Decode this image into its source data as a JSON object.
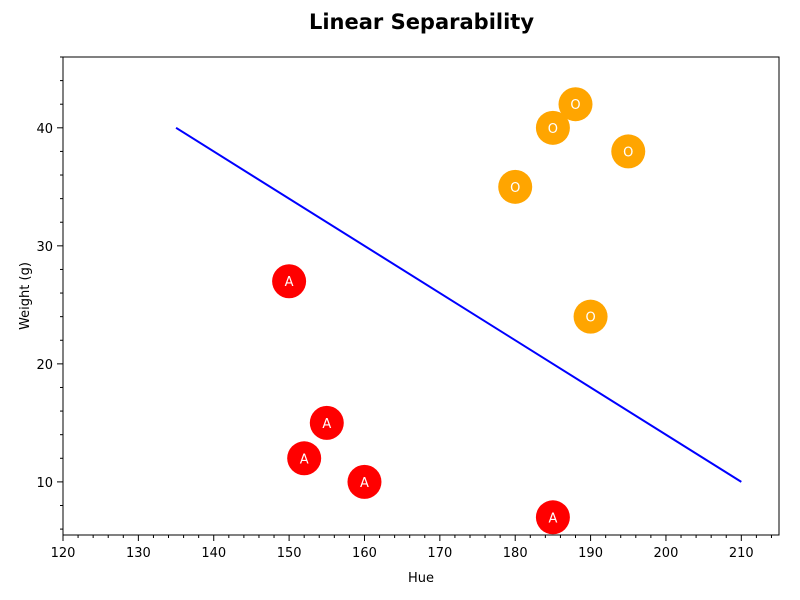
{
  "chart_data": {
    "type": "scatter",
    "title": "Linear Separability",
    "xlabel": "Hue",
    "ylabel": "Weight (g)",
    "xlim": [
      120,
      215
    ],
    "ylim": [
      5.5,
      46
    ],
    "x_ticks": [
      120,
      130,
      140,
      150,
      160,
      170,
      180,
      190,
      200,
      210
    ],
    "y_ticks": [
      10,
      20,
      30,
      40
    ],
    "grid": false,
    "colors": {
      "A": "#ff0000",
      "O": "#ffa500",
      "line": "#0000ff"
    },
    "series": [
      {
        "name": "A",
        "color": "#ff0000",
        "label": "A",
        "x": [
          150,
          155,
          152,
          160,
          185
        ],
        "y": [
          27,
          15,
          12,
          10,
          7
        ]
      },
      {
        "name": "O",
        "color": "#ffa500",
        "label": "O",
        "x": [
          188,
          185,
          195,
          180,
          190
        ],
        "y": [
          42,
          40,
          38,
          35,
          24
        ]
      }
    ],
    "line": {
      "x": [
        135,
        210
      ],
      "y": [
        40,
        10
      ]
    }
  }
}
